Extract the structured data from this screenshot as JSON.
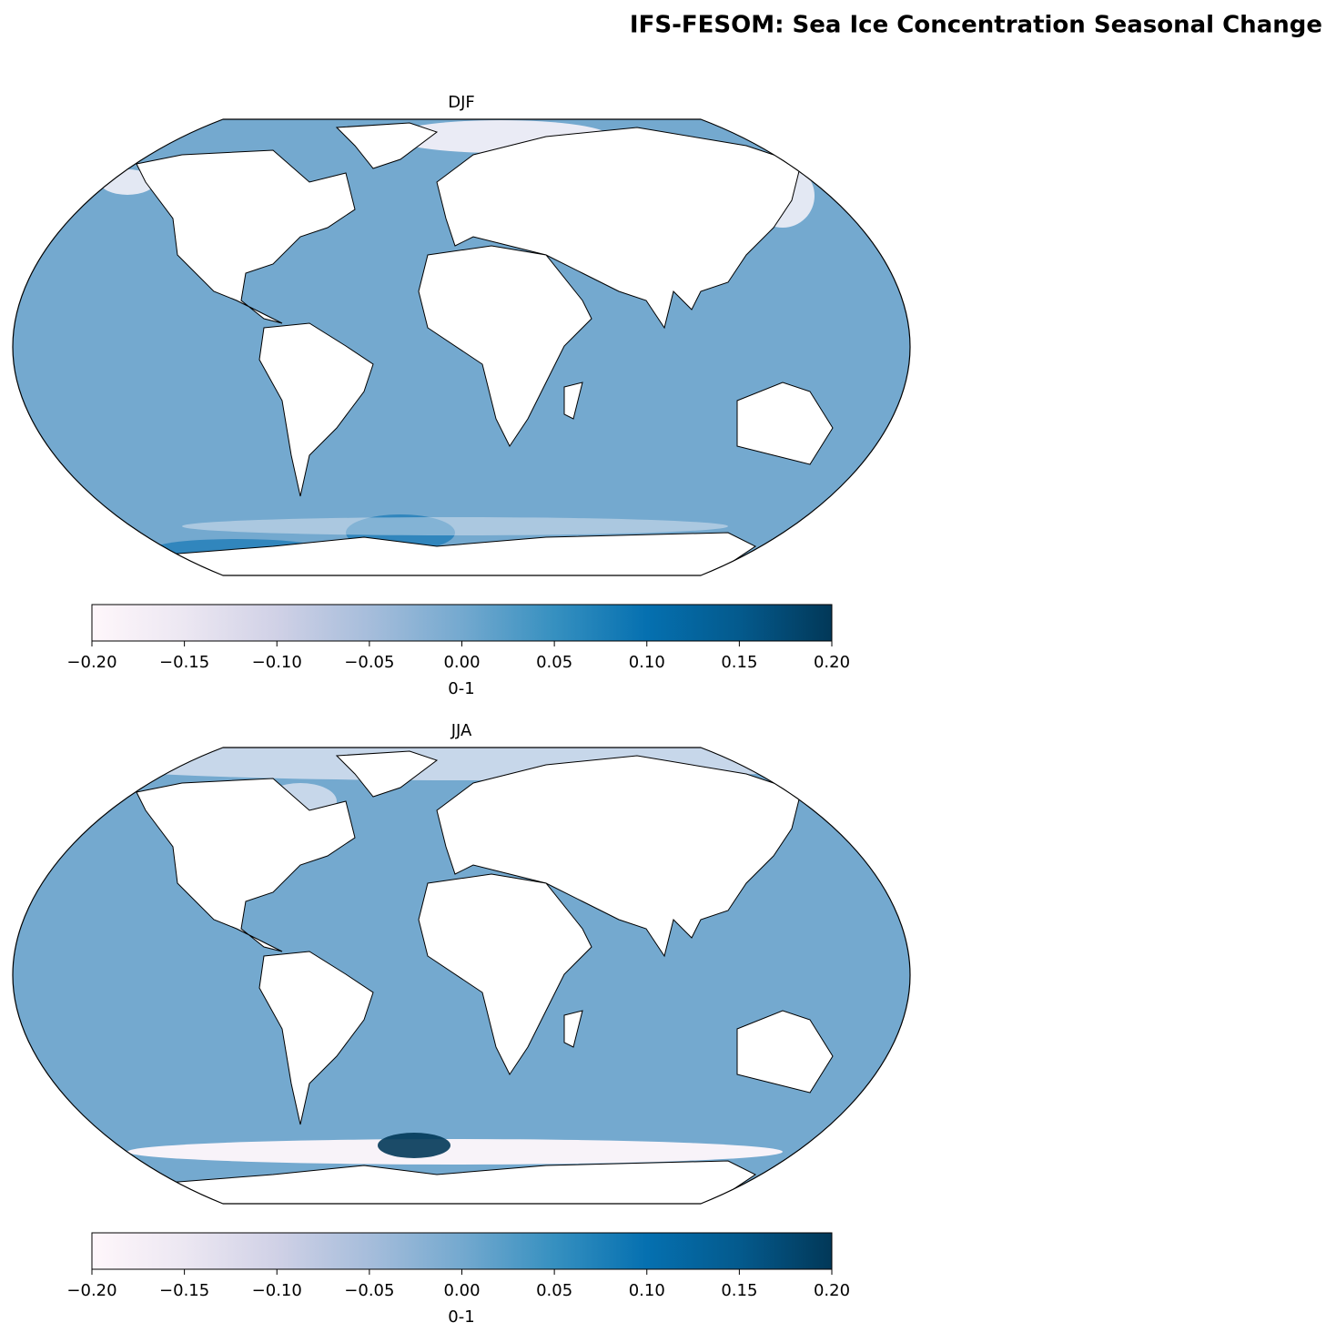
{
  "title": "IFS-FESOM: Sea Ice Concentration Seasonal Change",
  "chart_data": [
    {
      "type": "map",
      "title": "DJF",
      "colormap": [
        "#fff7fb",
        "#ece7f2",
        "#d0d1e6",
        "#a6bddb",
        "#74a9cf",
        "#3690c0",
        "#0570b0",
        "#045a8d",
        "#023858"
      ],
      "clim": [
        -0.2,
        0.2
      ],
      "colorbar_label": "0-1",
      "ticks": [
        {
          "value": -0.2,
          "label": "−0.20"
        },
        {
          "value": -0.15,
          "label": "−0.15"
        },
        {
          "value": -0.1,
          "label": "−0.10"
        },
        {
          "value": -0.05,
          "label": "−0.05"
        },
        {
          "value": 0,
          "label": "0.00"
        },
        {
          "value": 0.05,
          "label": "0.05"
        },
        {
          "value": 0.1,
          "label": "0.10"
        },
        {
          "value": 0.15,
          "label": "0.15"
        },
        {
          "value": 0.2,
          "label": "0.20"
        }
      ]
    },
    {
      "type": "map",
      "title": "JJA",
      "colormap": [
        "#fff7fb",
        "#ece7f2",
        "#d0d1e6",
        "#a6bddb",
        "#74a9cf",
        "#3690c0",
        "#0570b0",
        "#045a8d",
        "#023858"
      ],
      "clim": [
        -0.2,
        0.2
      ],
      "colorbar_label": "0-1",
      "ticks": [
        {
          "value": -0.2,
          "label": "−0.20"
        },
        {
          "value": -0.15,
          "label": "−0.15"
        },
        {
          "value": -0.1,
          "label": "−0.10"
        },
        {
          "value": -0.05,
          "label": "−0.05"
        },
        {
          "value": 0,
          "label": "0.00"
        },
        {
          "value": 0.05,
          "label": "0.05"
        },
        {
          "value": 0.1,
          "label": "0.10"
        },
        {
          "value": 0.15,
          "label": "0.15"
        },
        {
          "value": 0.2,
          "label": "0.20"
        }
      ]
    }
  ]
}
